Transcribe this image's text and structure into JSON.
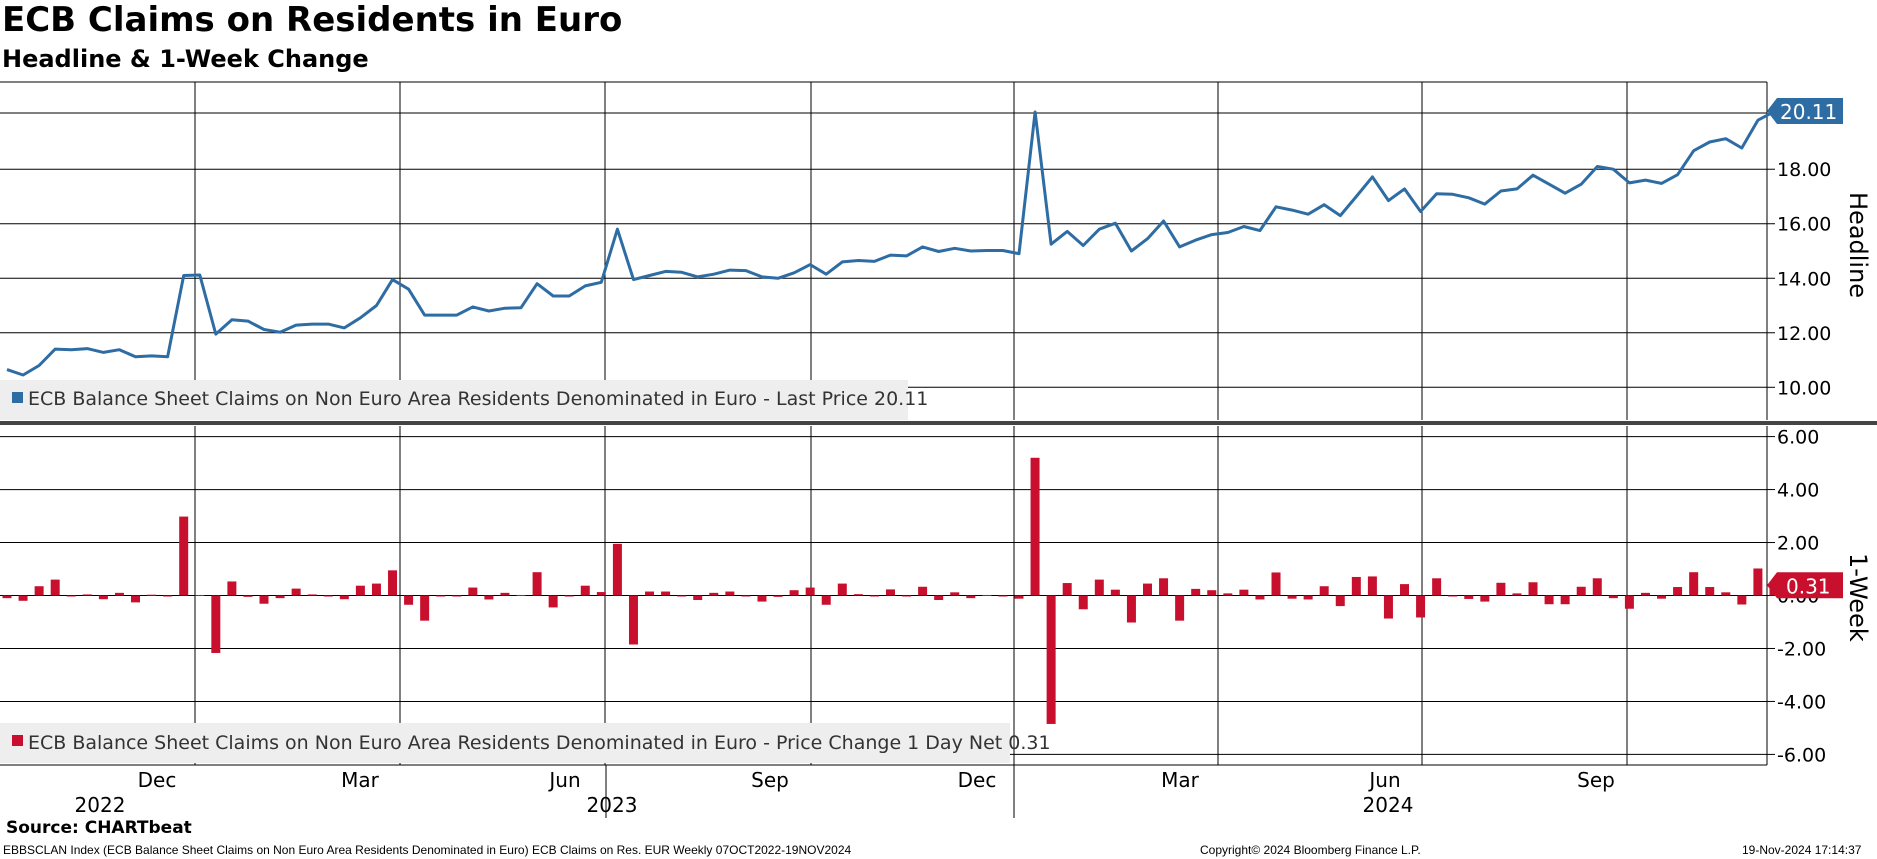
{
  "title": "ECB Claims on Residents in Euro",
  "subtitle": "Headline & 1-Week Change",
  "source": "Source: CHARTbeat",
  "footer": {
    "index": "EBBSCLAN Index (ECB Balance Sheet Claims on Non Euro Area Residents Denominated in Euro) ECB Claims on Res. EUR  Weekly 07OCT2022-19NOV2024",
    "copyright": "Copyright© 2024 Bloomberg Finance L.P.",
    "timestamp": "19-Nov-2024 17:14:37"
  },
  "colors": {
    "line": "#2e6ca4",
    "bar": "#c8102e",
    "grid": "#000000",
    "legend_bg": "#eeeeee"
  },
  "chart_data": [
    {
      "type": "line",
      "panel": "top",
      "axis_label": "Headline",
      "ylim": [
        8.8,
        21.2
      ],
      "yticks": [
        "10.00",
        "12.00",
        "14.00",
        "16.00",
        "18.00"
      ],
      "last_value_label": "20.11",
      "legend": "ECB Balance Sheet Claims on Non Euro Area Residents Denominated in Euro - Last Price 20.11",
      "grid": true,
      "legend_placement": "bottom-left",
      "series": [
        {
          "name": "ECB Balance Sheet Claims on Non Euro Area Residents Denominated in Euro - Last Price",
          "values": [
            10.65,
            10.45,
            10.8,
            11.4,
            11.38,
            11.42,
            11.28,
            11.38,
            11.12,
            11.15,
            11.12,
            14.1,
            14.12,
            11.95,
            12.48,
            12.43,
            12.12,
            12.02,
            12.28,
            12.32,
            12.32,
            12.18,
            12.55,
            13.0,
            13.95,
            13.6,
            12.65,
            12.65,
            12.65,
            12.95,
            12.8,
            12.9,
            12.92,
            13.8,
            13.35,
            13.35,
            13.72,
            13.85,
            15.8,
            13.95,
            14.1,
            14.25,
            14.22,
            14.05,
            14.15,
            14.3,
            14.28,
            14.05,
            14.0,
            14.2,
            14.5,
            14.15,
            14.6,
            14.65,
            14.62,
            14.85,
            14.82,
            15.15,
            14.98,
            15.1,
            15.0,
            15.02,
            15.02,
            14.9,
            20.1,
            15.25,
            15.72,
            15.2,
            15.8,
            16.02,
            15.0,
            15.45,
            16.1,
            15.15,
            15.4,
            15.6,
            15.68,
            15.9,
            15.75,
            16.62,
            16.5,
            16.35,
            16.7,
            16.3,
            17.0,
            17.72,
            16.85,
            17.28,
            16.45,
            17.1,
            17.08,
            16.95,
            16.72,
            17.2,
            17.28,
            17.78,
            17.45,
            17.12,
            17.45,
            18.1,
            18.0,
            17.5,
            17.6,
            17.48,
            17.8,
            18.68,
            19.0,
            19.12,
            18.78,
            19.8,
            20.11
          ]
        }
      ]
    },
    {
      "type": "bar",
      "panel": "bottom",
      "axis_label": "1-Week",
      "ylim": [
        -6.4,
        6.4
      ],
      "yticks": [
        "6.00",
        "4.00",
        "2.00",
        "0.00",
        "-2.00",
        "-4.00",
        "-6.00"
      ],
      "last_value_label": "0.31",
      "legend": "ECB Balance Sheet Claims on Non Euro Area Residents Denominated in Euro - Price Change 1 Day Net 0.31",
      "grid": true,
      "legend_placement": "bottom-left",
      "series": [
        {
          "name": "ECB Balance Sheet Claims on Non Euro Area Residents Denominated in Euro - Price Change 1 Day Net",
          "values": [
            -0.1,
            -0.2,
            0.35,
            0.6,
            -0.02,
            0.04,
            -0.14,
            0.1,
            -0.26,
            0.03,
            -0.03,
            2.98,
            0.02,
            -2.17,
            0.53,
            -0.05,
            -0.31,
            -0.1,
            0.26,
            0.04,
            0.0,
            -0.14,
            0.37,
            0.45,
            0.95,
            -0.35,
            -0.95,
            0.0,
            0.0,
            0.3,
            -0.15,
            0.1,
            0.02,
            0.88,
            -0.45,
            0.0,
            0.37,
            0.13,
            1.95,
            -1.85,
            0.15,
            0.15,
            -0.03,
            -0.17,
            0.1,
            0.15,
            -0.02,
            -0.23,
            -0.05,
            0.2,
            0.3,
            -0.35,
            0.45,
            0.05,
            -0.03,
            0.23,
            -0.03,
            0.33,
            -0.17,
            0.12,
            -0.1,
            0.02,
            0.0,
            -0.12,
            5.2,
            -4.85,
            0.47,
            -0.52,
            0.6,
            0.22,
            -1.02,
            0.45,
            0.65,
            -0.95,
            0.25,
            0.2,
            0.08,
            0.22,
            -0.15,
            0.87,
            -0.12,
            -0.15,
            0.35,
            -0.4,
            0.7,
            0.72,
            -0.87,
            0.43,
            -0.83,
            0.65,
            -0.02,
            -0.13,
            -0.23,
            0.48,
            0.08,
            0.5,
            -0.33,
            -0.33,
            0.33,
            0.65,
            -0.1,
            -0.5,
            0.1,
            -0.12,
            0.32,
            0.88,
            0.32,
            0.12,
            -0.34,
            1.02,
            0.31
          ]
        }
      ]
    }
  ],
  "x_axis": {
    "months": [
      "Dec",
      "Mar",
      "Jun",
      "Sep",
      "Dec",
      "Mar",
      "Jun",
      "Sep"
    ],
    "years": [
      "2022",
      "2023",
      "2024"
    ]
  }
}
